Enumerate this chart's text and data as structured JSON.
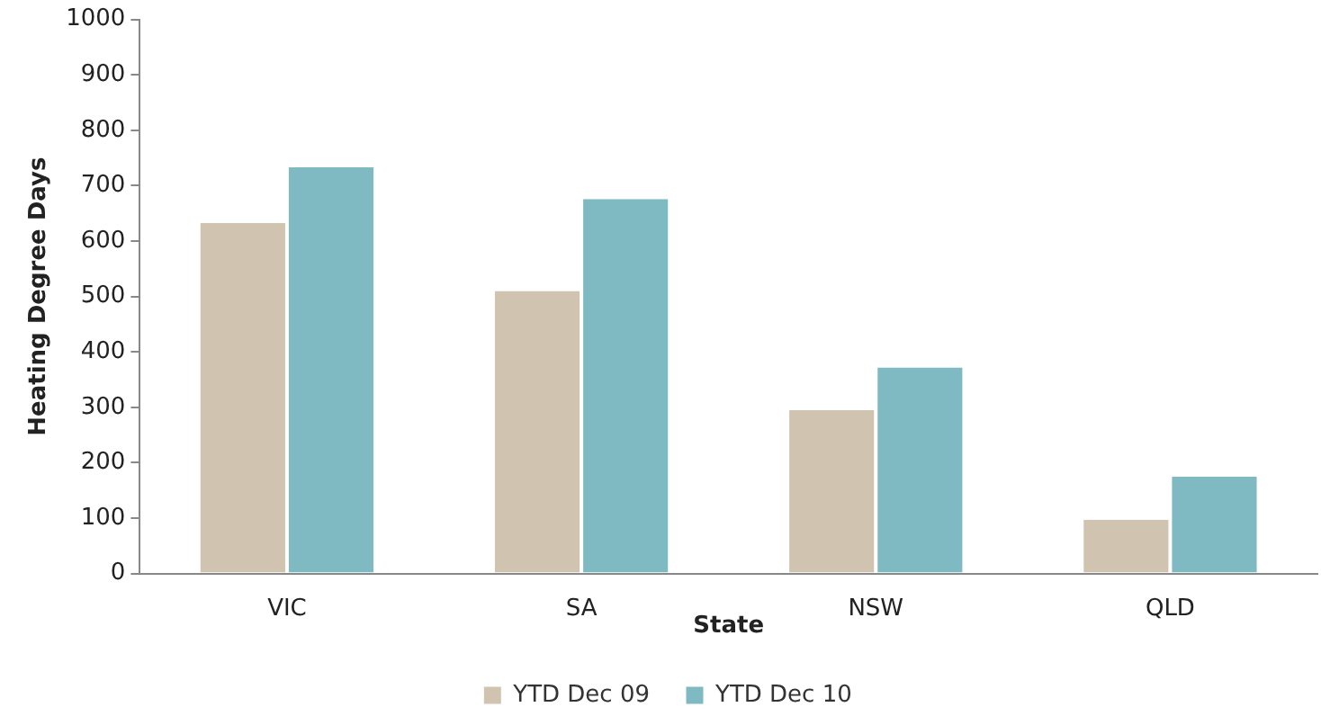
{
  "chart_data": {
    "type": "bar",
    "xlabel": "State",
    "ylabel": "Heating Degree Days",
    "categories": [
      "VIC",
      "SA",
      "NSW",
      "QLD"
    ],
    "series": [
      {
        "name": "YTD Dec 09",
        "color": "#d0c4b1",
        "values": [
          633,
          510,
          295,
          97
        ]
      },
      {
        "name": "YTD Dec 10",
        "color": "#7fbac3",
        "values": [
          733,
          676,
          372,
          175
        ]
      }
    ],
    "ylim": [
      0,
      1000
    ],
    "yticks": [
      0,
      100,
      200,
      300,
      400,
      500,
      600,
      700,
      800,
      900,
      1000
    ],
    "grid": false,
    "legend": "bottom"
  }
}
